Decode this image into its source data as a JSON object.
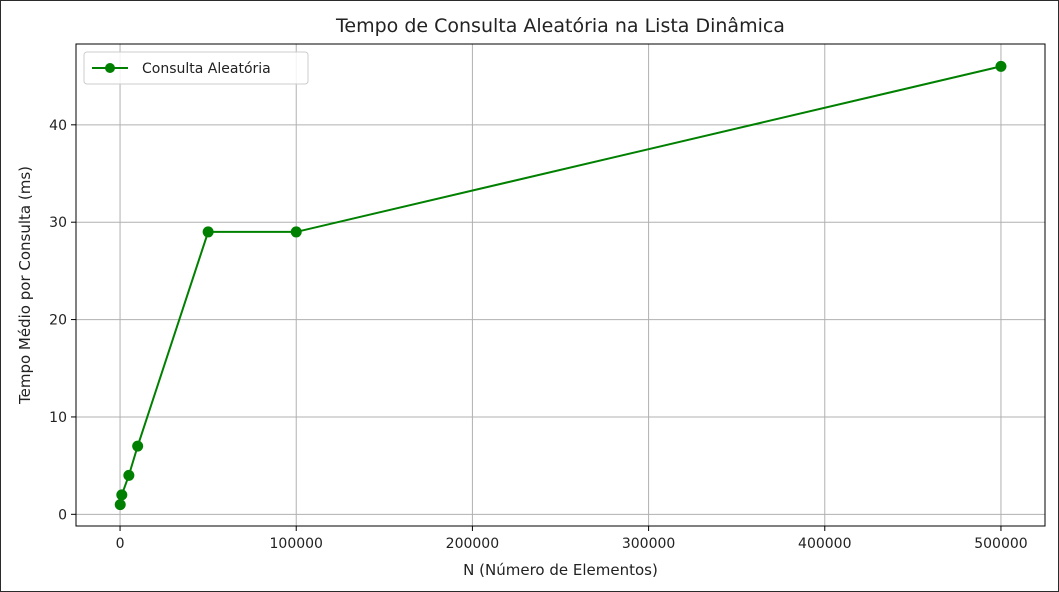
{
  "chart_data": {
    "type": "line",
    "title": "Tempo de Consulta Aleatória na Lista Dinâmica",
    "xlabel": "N (Número de Elementos)",
    "ylabel": "Tempo Médio por Consulta (ms)",
    "xlim": [
      -25000,
      525000
    ],
    "ylim": [
      -1.2,
      48.3
    ],
    "xticks": [
      0,
      100000,
      200000,
      300000,
      400000,
      500000
    ],
    "yticks": [
      0,
      10,
      20,
      30,
      40
    ],
    "grid": true,
    "legend_position": "top-left",
    "series": [
      {
        "name": "Consulta Aleatória",
        "color": "#008000",
        "marker": "circle",
        "x": [
          100,
          1000,
          5000,
          10000,
          50000,
          100000,
          500000
        ],
        "y": [
          1,
          2,
          4,
          7,
          29,
          29,
          46
        ]
      }
    ]
  }
}
